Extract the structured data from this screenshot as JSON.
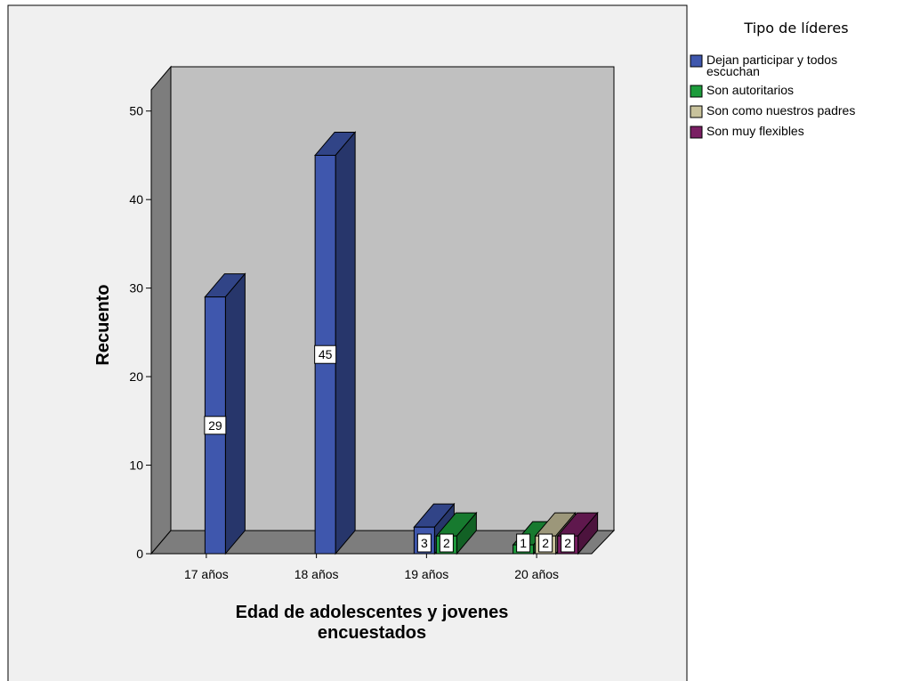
{
  "chart_data": {
    "type": "bar",
    "title": "",
    "xlabel_lines": [
      "Edad de adolescentes y jovenes",
      "encuestados"
    ],
    "ylabel": "Recuento",
    "ylim": [
      0,
      55
    ],
    "yticks": [
      "0",
      "10",
      "20",
      "30",
      "40",
      "50"
    ],
    "categories": [
      "17 años",
      "18 años",
      "19 años",
      "20 años"
    ],
    "legend_title": "Tipo de líderes",
    "legend_position": "right",
    "legend_items": [
      {
        "lines": [
          "Dejan participar y todos",
          "escuchan"
        ],
        "color": "#3f57ad"
      },
      {
        "lines": [
          "Son autoritarios"
        ],
        "color": "#1d9c3c"
      },
      {
        "lines": [
          "Son como nuestros padres"
        ],
        "color": "#c8c29c"
      },
      {
        "lines": [
          "Son muy flexibles"
        ],
        "color": "#7a1f63"
      }
    ],
    "series": [
      {
        "name": "Dejan participar y todos escuchan",
        "color": "#3f57ad",
        "values": [
          29,
          45,
          3,
          null
        ],
        "labels": [
          "29",
          "45",
          "3",
          ""
        ]
      },
      {
        "name": "Son autoritarios",
        "color": "#1d9c3c",
        "values": [
          null,
          null,
          2,
          1
        ],
        "labels": [
          "",
          "",
          "2",
          "1"
        ]
      },
      {
        "name": "Son como nuestros padres",
        "color": "#c8c29c",
        "values": [
          null,
          null,
          null,
          2
        ],
        "labels": [
          "",
          "",
          "",
          "2"
        ]
      },
      {
        "name": "Son muy flexibles",
        "color": "#7a1f63",
        "values": [
          null,
          null,
          null,
          2
        ],
        "labels": [
          "",
          "",
          "",
          "2"
        ]
      }
    ],
    "grid": false,
    "background": "#c0c0c0",
    "plot_frame_background": "#f0f0f0"
  }
}
